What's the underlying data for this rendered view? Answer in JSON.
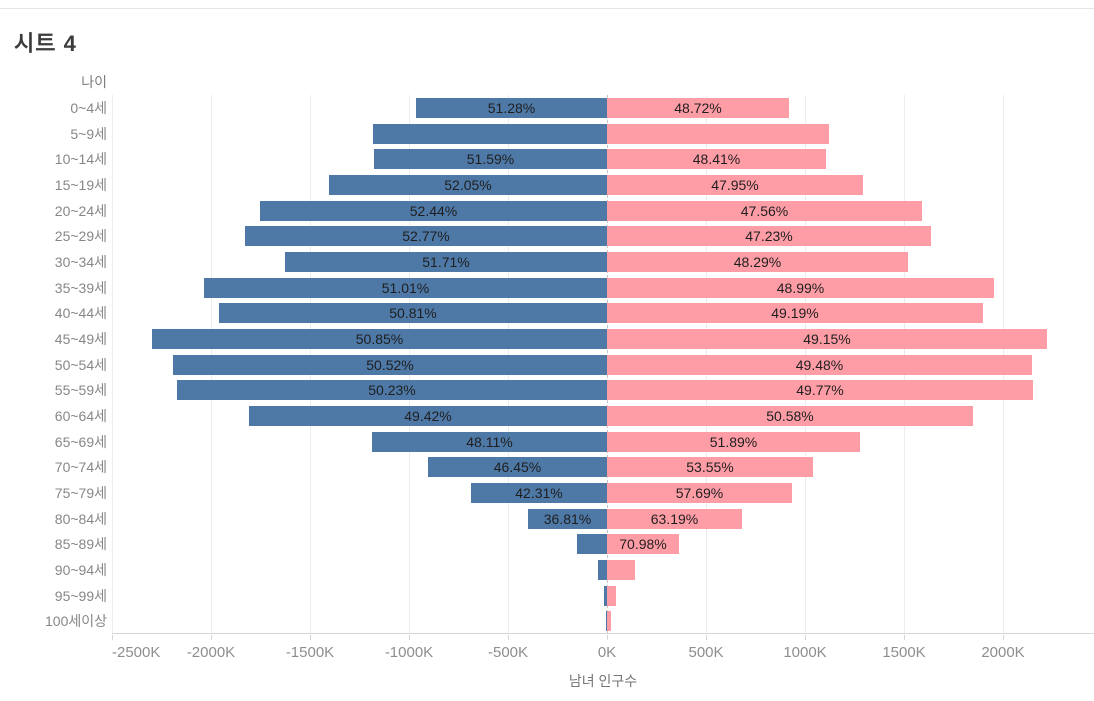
{
  "page": {
    "title": "시트 4"
  },
  "chart_data": {
    "type": "bar",
    "subtype": "population_pyramid_horizontal_diverging",
    "title": "시트 4",
    "row_axis_title": "나이",
    "xlabel": "남녀 인구수",
    "x_unit_suffix": "K",
    "xlim_k": [
      -2500,
      2460
    ],
    "x_tick_values_k": [
      -2500,
      -2000,
      -1500,
      -1000,
      -500,
      0,
      500,
      1000,
      1500,
      2000
    ],
    "x_tick_labels": [
      "-2500K",
      "-2000K",
      "-1500K",
      "-1000K",
      "-500K",
      "0K",
      "500K",
      "1000K",
      "1500K",
      "2000K"
    ],
    "grid": true,
    "zero_line": "dashed",
    "legend": "none",
    "categories": [
      "0~4세",
      "5~9세",
      "10~14세",
      "15~19세",
      "20~24세",
      "25~29세",
      "30~34세",
      "35~39세",
      "40~44세",
      "45~49세",
      "50~54세",
      "55~59세",
      "60~64세",
      "65~69세",
      "70~74세",
      "75~79세",
      "80~84세",
      "85~89세",
      "90~94세",
      "95~99세",
      "100세이상"
    ],
    "series": [
      {
        "name": "male_left",
        "side": "left",
        "color": "#4e79a7",
        "values_k": [
          965,
          1182,
          1177,
          1404,
          1754,
          1828,
          1628,
          2035,
          1962,
          2299,
          2191,
          2172,
          1806,
          1185,
          902,
          685,
          397,
          149,
          45,
          15,
          5
        ],
        "labels": [
          "51.28%",
          "",
          "51.59%",
          "52.05%",
          "52.44%",
          "52.77%",
          "51.71%",
          "51.01%",
          "50.81%",
          "50.85%",
          "50.52%",
          "50.23%",
          "49.42%",
          "48.11%",
          "46.45%",
          "42.31%",
          "36.81%",
          "",
          "",
          "",
          ""
        ]
      },
      {
        "name": "female_right",
        "side": "right",
        "color": "#ff9da7",
        "values_k": [
          917,
          1121,
          1104,
          1293,
          1591,
          1636,
          1520,
          1954,
          1899,
          2222,
          2146,
          2152,
          1848,
          1278,
          1040,
          934,
          682,
          364,
          141,
          45,
          20
        ],
        "labels": [
          "48.72%",
          "",
          "48.41%",
          "47.95%",
          "47.56%",
          "47.23%",
          "48.29%",
          "48.99%",
          "49.19%",
          "49.15%",
          "49.48%",
          "49.77%",
          "50.58%",
          "51.89%",
          "53.55%",
          "57.69%",
          "63.19%",
          "70.98%",
          "",
          "",
          ""
        ]
      }
    ],
    "colors": {
      "male_bar": "#4e79a7",
      "female_bar": "#ff9da7",
      "bar_label_text": "#1e1e1e",
      "axis_text": "#8e8e8e"
    }
  }
}
